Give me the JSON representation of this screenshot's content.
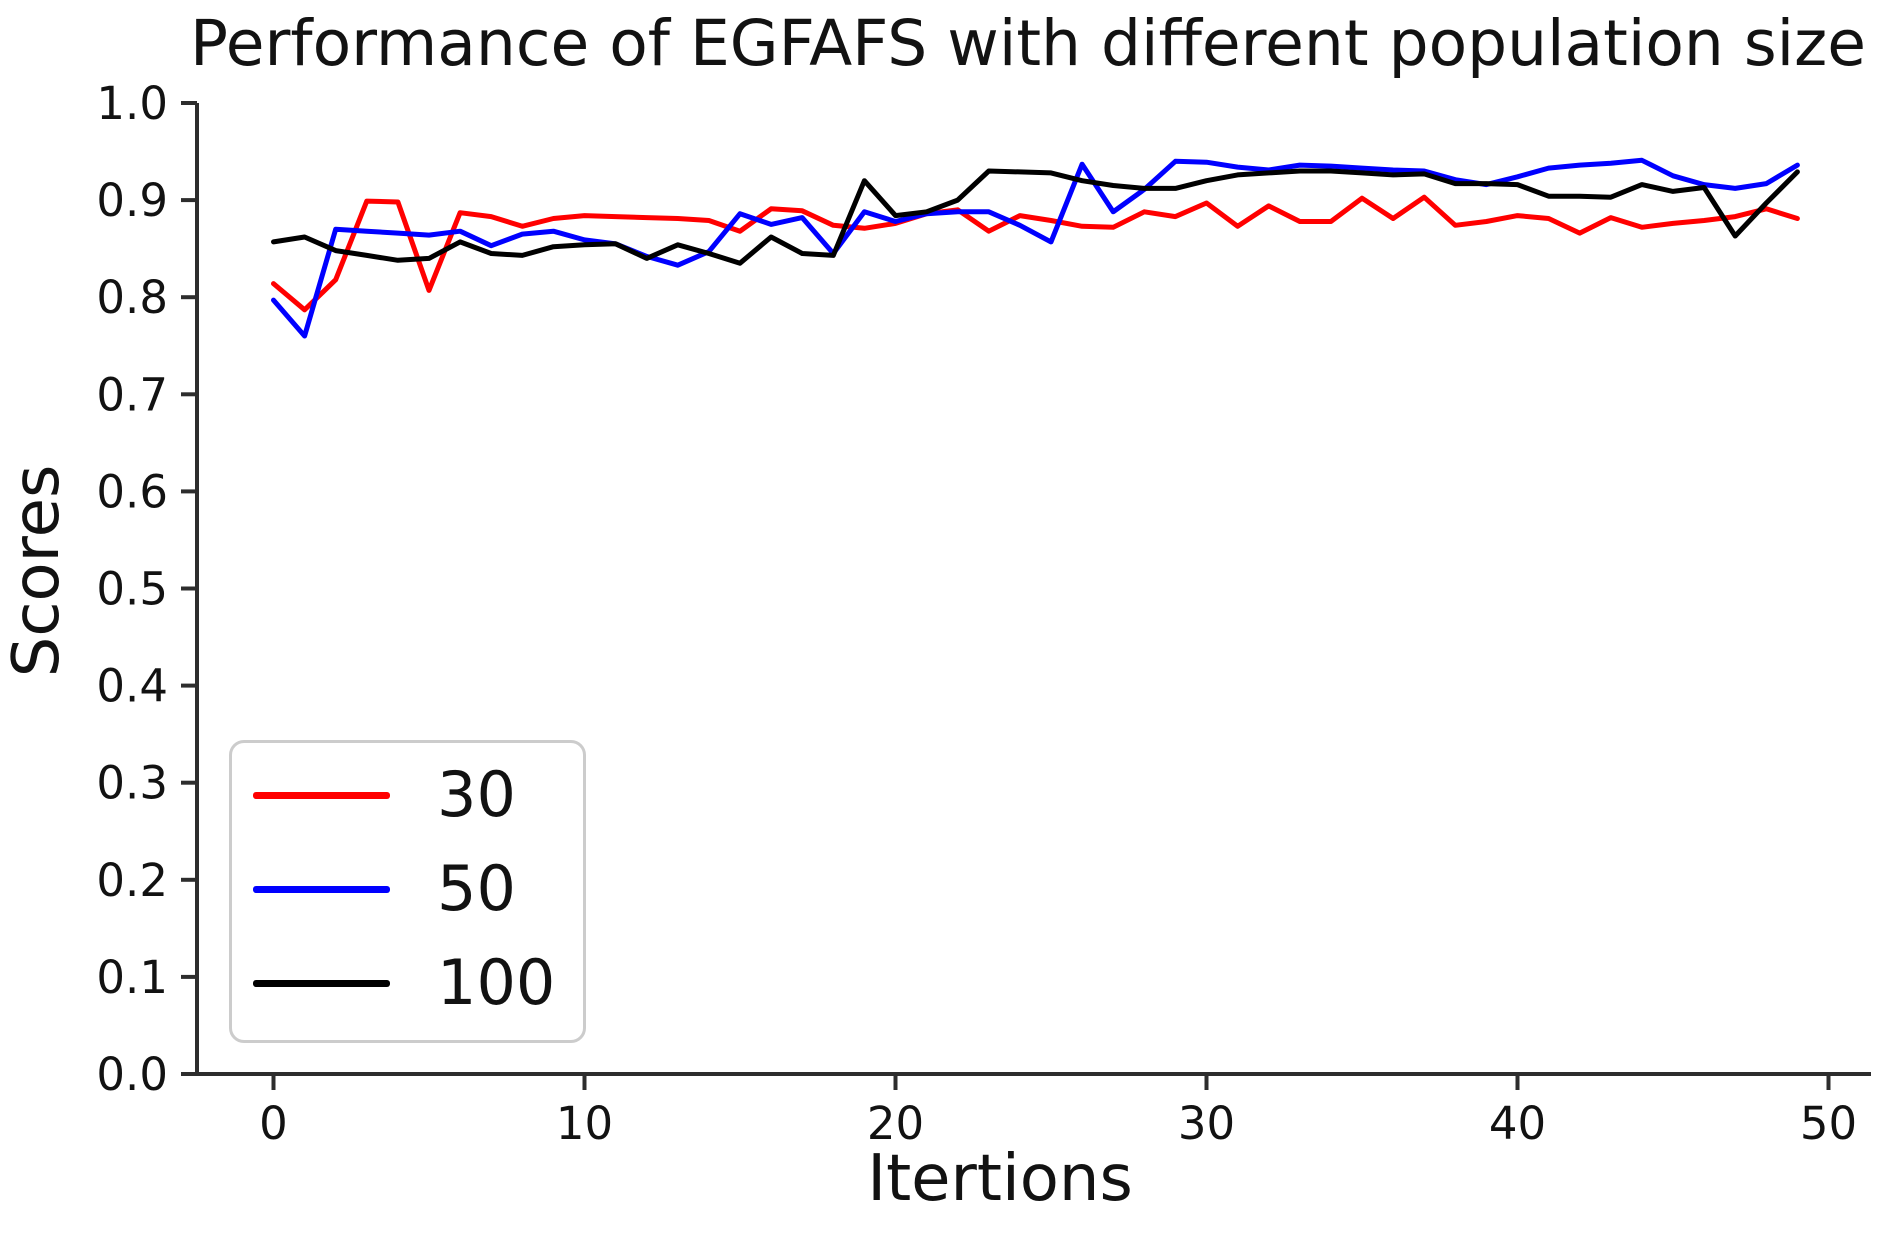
{
  "chart_data": {
    "type": "line",
    "title": "Performance of EGFAFS with different population size",
    "xlabel": "Itertions",
    "ylabel": "Scores",
    "xlim": [
      -2.45,
      51.4
    ],
    "ylim": [
      0.0,
      1.0
    ],
    "grid": false,
    "legend_position": "lower left",
    "xticks": [
      0,
      10,
      20,
      30,
      40,
      50
    ],
    "yticks": [
      "0.0",
      "0.1",
      "0.2",
      "0.3",
      "0.4",
      "0.5",
      "0.6",
      "0.7",
      "0.8",
      "0.9",
      "1.0"
    ],
    "axis_color": "#2d2d2d",
    "x": [
      0,
      1,
      2,
      3,
      4,
      5,
      6,
      7,
      8,
      9,
      10,
      11,
      12,
      13,
      14,
      15,
      16,
      17,
      18,
      19,
      20,
      21,
      22,
      23,
      24,
      25,
      26,
      27,
      28,
      29,
      30,
      31,
      32,
      33,
      34,
      35,
      36,
      37,
      38,
      39,
      40,
      41,
      42,
      43,
      44,
      45,
      46,
      47,
      48,
      49
    ],
    "series": [
      {
        "name": "30",
        "color": "#ff0000",
        "values": [
          0.814,
          0.787,
          0.818,
          0.899,
          0.898,
          0.807,
          0.887,
          0.883,
          0.873,
          0.881,
          0.884,
          0.883,
          0.882,
          0.881,
          0.879,
          0.868,
          0.891,
          0.889,
          0.874,
          0.871,
          0.876,
          0.886,
          0.89,
          0.868,
          0.884,
          0.879,
          0.873,
          0.872,
          0.888,
          0.883,
          0.897,
          0.873,
          0.894,
          0.878,
          0.878,
          0.902,
          0.881,
          0.903,
          0.874,
          0.878,
          0.884,
          0.881,
          0.866,
          0.882,
          0.872,
          0.876,
          0.879,
          0.883,
          0.891,
          0.881
        ]
      },
      {
        "name": "50",
        "color": "#0000ff",
        "values": [
          0.797,
          0.76,
          0.87,
          0.868,
          0.866,
          0.864,
          0.868,
          0.853,
          0.865,
          0.868,
          0.859,
          0.855,
          0.842,
          0.833,
          0.847,
          0.886,
          0.875,
          0.882,
          0.845,
          0.888,
          0.878,
          0.886,
          0.888,
          0.888,
          0.874,
          0.857,
          0.937,
          0.888,
          0.911,
          0.94,
          0.939,
          0.934,
          0.931,
          0.936,
          0.935,
          0.933,
          0.931,
          0.93,
          0.921,
          0.916,
          0.924,
          0.933,
          0.936,
          0.938,
          0.941,
          0.925,
          0.916,
          0.912,
          0.917,
          0.936
        ]
      },
      {
        "name": "100",
        "color": "#000000",
        "values": [
          0.857,
          0.862,
          0.848,
          0.843,
          0.838,
          0.84,
          0.857,
          0.845,
          0.843,
          0.852,
          0.854,
          0.855,
          0.84,
          0.854,
          0.845,
          0.835,
          0.862,
          0.845,
          0.843,
          0.92,
          0.884,
          0.888,
          0.9,
          0.93,
          0.929,
          0.928,
          0.92,
          0.915,
          0.912,
          0.912,
          0.92,
          0.926,
          0.928,
          0.93,
          0.93,
          0.928,
          0.926,
          0.927,
          0.917,
          0.917,
          0.916,
          0.904,
          0.904,
          0.903,
          0.916,
          0.909,
          0.913,
          0.863,
          0.897,
          0.929
        ]
      }
    ]
  }
}
